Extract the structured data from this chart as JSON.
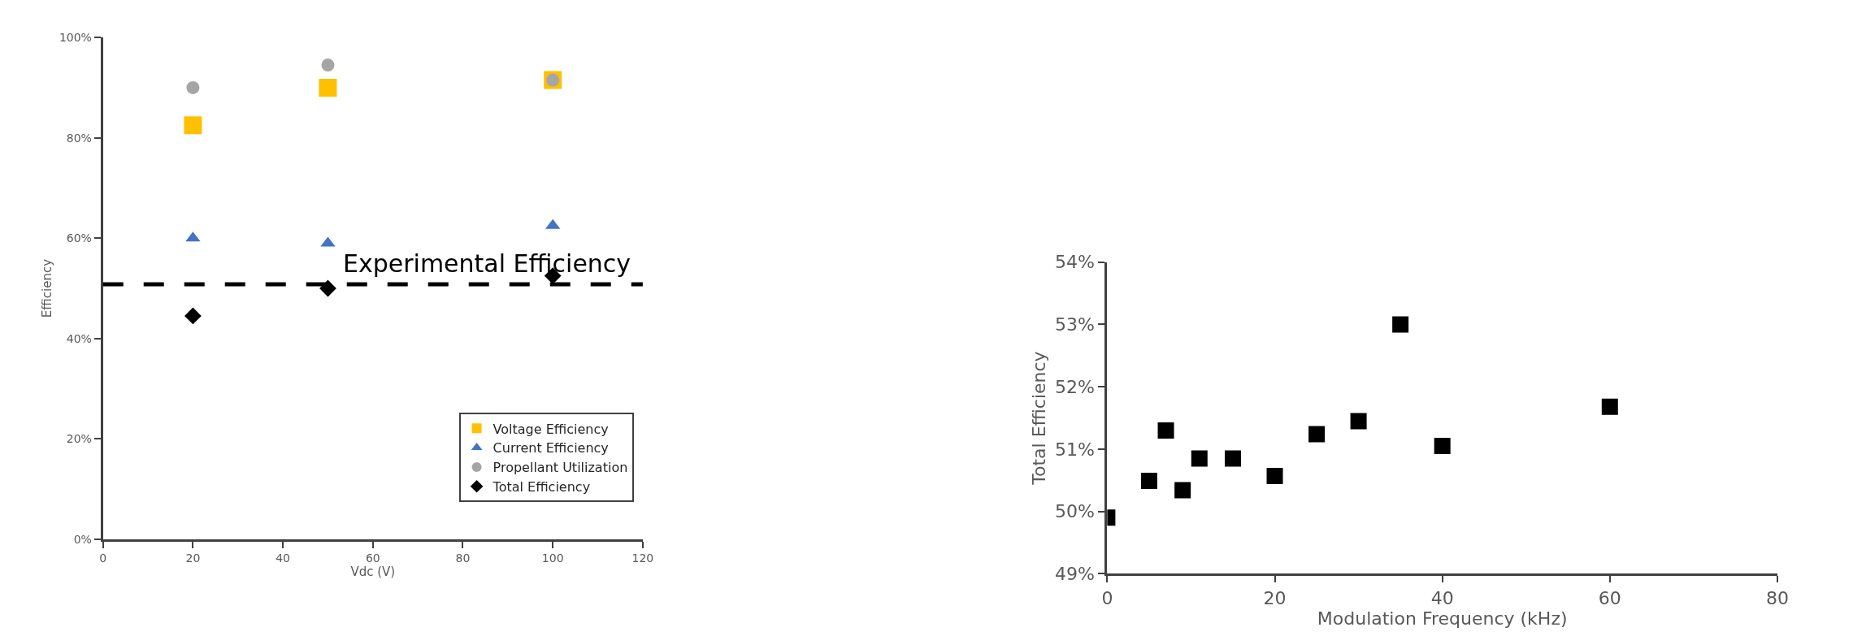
{
  "chart_data": [
    {
      "type": "scatter",
      "xlabel": "Vdc (V)",
      "ylabel": "Efficiency",
      "x": [
        20,
        50,
        100
      ],
      "series": [
        {
          "name": "Voltage Efficiency",
          "color": "#ffc000",
          "marker": "square",
          "values": [
            82.5,
            90,
            91.5
          ]
        },
        {
          "name": "Current Efficiency",
          "color": "#4472c4",
          "marker": "triangle",
          "values": [
            60,
            59,
            62.5
          ]
        },
        {
          "name": "Propellant Utilization",
          "color": "#a5a5a5",
          "marker": "circle",
          "values": [
            90,
            94.5,
            91.5
          ]
        },
        {
          "name": "Total Efficiency",
          "color": "#000000",
          "marker": "diamond",
          "values": [
            44.5,
            50,
            52.5
          ]
        }
      ],
      "xlim": [
        0,
        120
      ],
      "xticks": [
        0,
        20,
        40,
        60,
        80,
        100,
        120
      ],
      "ylim": [
        0,
        100
      ],
      "yticks": [
        {
          "value": 0,
          "label": "0%"
        },
        {
          "value": 20,
          "label": "20%"
        },
        {
          "value": 40,
          "label": "40%"
        },
        {
          "value": 60,
          "label": "60%"
        },
        {
          "value": 80,
          "label": "80%"
        },
        {
          "value": 100,
          "label": "100%"
        }
      ],
      "ref_lines": [
        {
          "axis": "y",
          "value": 50.8,
          "label": "Experimental Efficiency",
          "color": "#000000",
          "line_style": "dashed"
        }
      ],
      "legend": "bottom right"
    },
    {
      "type": "scatter",
      "xlabel": "Modulation Frequency (kHz)",
      "ylabel": "Total Efficiency",
      "marker": "square",
      "x": [
        0,
        5,
        7,
        9,
        11,
        15,
        20,
        25,
        30,
        35,
        40,
        60
      ],
      "series": [
        {
          "color": "#000000",
          "values": [
            49.9,
            50.49,
            51.3,
            50.34,
            50.85,
            50.85,
            50.57,
            51.24,
            51.45,
            53.0,
            51.05,
            51.68
          ]
        }
      ],
      "xlim": [
        0,
        80
      ],
      "xticks": [
        0,
        20,
        40,
        60,
        80
      ],
      "ylim": [
        49,
        54
      ],
      "yticks": [
        {
          "value": 49,
          "label": "49%"
        },
        {
          "value": 50,
          "label": "50%"
        },
        {
          "value": 51,
          "label": "51%"
        },
        {
          "value": 52,
          "label": "52%"
        },
        {
          "value": 53,
          "label": "53%"
        },
        {
          "value": 54,
          "label": "54%"
        }
      ],
      "legend": false
    }
  ]
}
